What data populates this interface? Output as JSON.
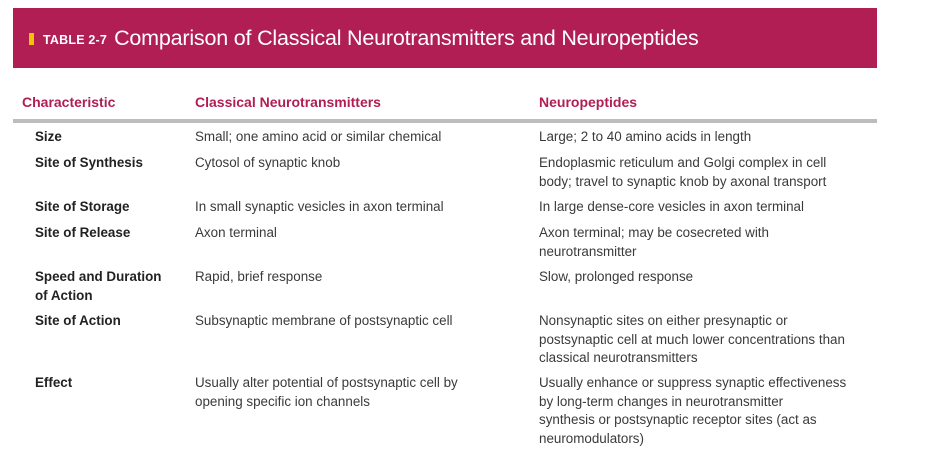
{
  "header": {
    "table_label": "TABLE 2-7",
    "title": "Comparison of Classical Neurotransmitters and Neuropeptides"
  },
  "columns": {
    "characteristic": "Characteristic",
    "classical": "Classical Neurotransmitters",
    "neuropeptides": "Neuropeptides"
  },
  "rows": [
    {
      "characteristic": [
        "Size"
      ],
      "classical": [
        "Small; one amino acid or similar chemical"
      ],
      "neuropeptides": [
        "Large; 2 to 40 amino acids in length"
      ]
    },
    {
      "characteristic": [
        "Site of Synthesis"
      ],
      "classical": [
        "Cytosol of synaptic knob"
      ],
      "neuropeptides": [
        "Endoplasmic reticulum and Golgi complex in cell",
        "body; travel to synaptic knob by axonal transport"
      ]
    },
    {
      "characteristic": [
        "Site of Storage"
      ],
      "classical": [
        "In small synaptic vesicles in axon terminal"
      ],
      "neuropeptides": [
        "In large dense-core vesicles in axon terminal"
      ]
    },
    {
      "characteristic": [
        "Site of Release"
      ],
      "classical": [
        "Axon terminal"
      ],
      "neuropeptides": [
        "Axon terminal; may be cosecreted with",
        "neurotransmitter"
      ]
    },
    {
      "characteristic": [
        "Speed and Duration",
        "of Action"
      ],
      "classical": [
        "Rapid, brief response"
      ],
      "neuropeptides": [
        "Slow, prolonged response"
      ]
    },
    {
      "characteristic": [
        "Site of Action"
      ],
      "classical": [
        "Subsynaptic membrane of postsynaptic cell"
      ],
      "neuropeptides": [
        "Nonsynaptic sites on either presynaptic or",
        "postsynaptic cell at much lower concentrations than",
        "classical neurotransmitters"
      ]
    },
    {
      "characteristic": [
        "Effect"
      ],
      "classical": [
        "Usually alter potential of postsynaptic cell by",
        "opening specific ion channels"
      ],
      "neuropeptides": [
        "Usually enhance or suppress synaptic effectiveness",
        "by long-term changes in neurotransmitter",
        "synthesis or postsynaptic receptor sites (act as",
        "neuromodulators)"
      ]
    }
  ]
}
